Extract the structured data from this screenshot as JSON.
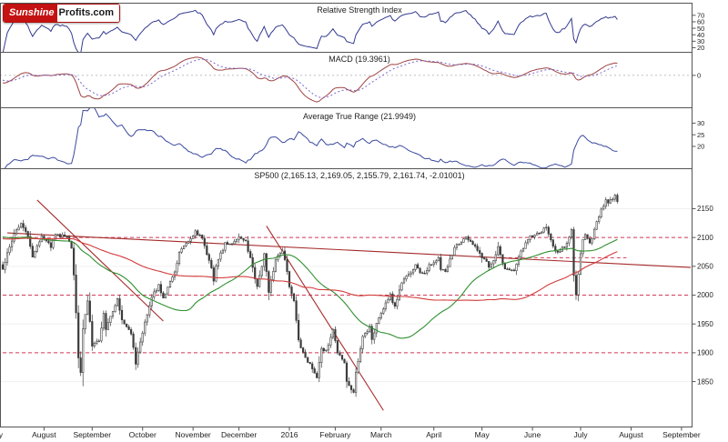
{
  "logo": {
    "brand_left": "Sunshine",
    "brand_right": "Profits.com"
  },
  "colors": {
    "rsi_line": "#333a8f",
    "macd_line": "#a04545",
    "macd_signal": "#7b68cc",
    "atr_line": "#3a4a9f",
    "candle": "#3c3c3c",
    "sma_fast": "#2f8f2f",
    "sma_slow": "#d23b3b",
    "trend": "#a52a2a",
    "level": "#d23b5a",
    "grid": "#f0f0f0",
    "axis": "#555555",
    "text": "#222222"
  },
  "chart_data": {
    "type": "candlestick_with_indicators",
    "seed": 7,
    "x_axis": {
      "months": [
        {
          "label": "July",
          "day": -3
        },
        {
          "label": "August",
          "day": 18
        },
        {
          "label": "September",
          "day": 39
        },
        {
          "label": "October",
          "day": 61
        },
        {
          "label": "November",
          "day": 83
        },
        {
          "label": "December",
          "day": 103
        },
        {
          "label": "2016",
          "day": 125
        },
        {
          "label": "February",
          "day": 145
        },
        {
          "label": "March",
          "day": 165
        },
        {
          "label": "April",
          "day": 188
        },
        {
          "label": "May",
          "day": 209
        },
        {
          "label": "June",
          "day": 231
        },
        {
          "label": "July",
          "day": 252
        },
        {
          "label": "August",
          "day": 274
        },
        {
          "label": "September",
          "day": 296
        }
      ]
    },
    "panels": {
      "rsi": {
        "type": "line",
        "title": "Relative Strength Index",
        "indicator": "RSI(14)",
        "ticks": [
          70,
          60,
          50,
          40,
          30,
          20
        ],
        "range": [
          15,
          88
        ]
      },
      "macd": {
        "type": "line",
        "title": "MACD (19.3961)",
        "indicator": "MACD(12,26,9)",
        "last_value": 19.3961,
        "ticks": [
          0
        ]
      },
      "atr": {
        "type": "line",
        "title": "Average True Range (21.9949)",
        "indicator": "ATR(14)",
        "last_value": 21.9949,
        "ticks": [
          30,
          25,
          20
        ],
        "range": [
          11,
          36
        ]
      },
      "price": {
        "type": "candlestick",
        "title": "SP500 (2,165.13, 2,169.05, 2,155.79, 2,161.74, -2.01001)",
        "symbol": "SP500",
        "last_quote": {
          "open": 2165.13,
          "high": 2169.05,
          "low": 2155.79,
          "close": 2161.74,
          "change": -2.01001
        },
        "ticks": [
          2150,
          2100,
          2050,
          2000,
          1950,
          1900,
          1850
        ],
        "range": [
          1772,
          2217
        ],
        "overlays": [
          {
            "name": "SMA50",
            "color_key": "sma_fast"
          },
          {
            "name": "SMA100",
            "color_key": "sma_slow"
          }
        ],
        "lead_in_keypoints": [
          [
            -210,
            1990
          ],
          [
            -180,
            2040
          ],
          [
            -150,
            2075
          ],
          [
            -120,
            2058
          ],
          [
            -90,
            2100
          ],
          [
            -60,
            2090
          ],
          [
            -30,
            2115
          ],
          [
            -12,
            2108
          ],
          [
            -5,
            2077
          ]
        ],
        "keypoints": [
          [
            0,
            2046
          ],
          [
            2,
            2072
          ],
          [
            5,
            2108
          ],
          [
            8,
            2124
          ],
          [
            11,
            2102
          ],
          [
            13,
            2067
          ],
          [
            17,
            2104
          ],
          [
            21,
            2084
          ],
          [
            23,
            2104
          ],
          [
            28,
            2102
          ],
          [
            30,
            2080
          ],
          [
            31,
            2036
          ],
          [
            32,
            1971
          ],
          [
            33,
            1893
          ],
          [
            34,
            1868
          ],
          [
            35,
            1941
          ],
          [
            37,
            1989
          ],
          [
            39,
            1914
          ],
          [
            42,
            1921
          ],
          [
            44,
            1969
          ],
          [
            45,
            1942
          ],
          [
            50,
            1995
          ],
          [
            52,
            1958
          ],
          [
            56,
            1932
          ],
          [
            58,
            1882
          ],
          [
            60,
            1920
          ],
          [
            62,
            1951
          ],
          [
            65,
            1996
          ],
          [
            68,
            2017
          ],
          [
            70,
            1994
          ],
          [
            76,
            2053
          ],
          [
            77,
            2075
          ],
          [
            80,
            2090
          ],
          [
            84,
            2110
          ],
          [
            87,
            2099
          ],
          [
            91,
            2046
          ],
          [
            92,
            2023
          ],
          [
            93,
            2053
          ],
          [
            97,
            2089
          ],
          [
            100,
            2089
          ],
          [
            103,
            2102
          ],
          [
            106,
            2092
          ],
          [
            108,
            2064
          ],
          [
            111,
            2012
          ],
          [
            114,
            2073
          ],
          [
            116,
            2005
          ],
          [
            119,
            2064
          ],
          [
            122,
            2078
          ],
          [
            124,
            2044
          ],
          [
            125,
            2012
          ],
          [
            127,
            1990
          ],
          [
            129,
            1922
          ],
          [
            132,
            1890
          ],
          [
            134,
            1880
          ],
          [
            137,
            1859
          ],
          [
            139,
            1907
          ],
          [
            141,
            1904
          ],
          [
            144,
            1940
          ],
          [
            146,
            1903
          ],
          [
            149,
            1880
          ],
          [
            150,
            1853
          ],
          [
            153,
            1829
          ],
          [
            154,
            1865
          ],
          [
            157,
            1927
          ],
          [
            160,
            1945
          ],
          [
            161,
            1921
          ],
          [
            163,
            1952
          ],
          [
            166,
            1978
          ],
          [
            169,
            2000
          ],
          [
            171,
            1979
          ],
          [
            174,
            2022
          ],
          [
            178,
            2040
          ],
          [
            180,
            2052
          ],
          [
            183,
            2036
          ],
          [
            187,
            2055
          ],
          [
            190,
            2066
          ],
          [
            191,
            2045
          ],
          [
            193,
            2042
          ],
          [
            197,
            2082
          ],
          [
            202,
            2102
          ],
          [
            204,
            2092
          ],
          [
            208,
            2075
          ],
          [
            209,
            2065
          ],
          [
            212,
            2051
          ],
          [
            214,
            2057
          ],
          [
            216,
            2084
          ],
          [
            219,
            2046
          ],
          [
            223,
            2040
          ],
          [
            226,
            2076
          ],
          [
            229,
            2099
          ],
          [
            233,
            2105
          ],
          [
            237,
            2119
          ],
          [
            239,
            2096
          ],
          [
            241,
            2075
          ],
          [
            243,
            2078
          ],
          [
            245,
            2083
          ],
          [
            248,
            2113
          ],
          [
            249,
            2037
          ],
          [
            250,
            2001
          ],
          [
            251,
            2036
          ],
          [
            252,
            2071
          ],
          [
            253,
            2099
          ],
          [
            254,
            2103
          ],
          [
            256,
            2089
          ],
          [
            257,
            2100
          ],
          [
            259,
            2130
          ],
          [
            260,
            2137
          ],
          [
            261,
            2152
          ],
          [
            262,
            2152
          ],
          [
            263,
            2164
          ],
          [
            264,
            2162
          ],
          [
            265,
            2167
          ],
          [
            266,
            2164
          ],
          [
            267,
            2173
          ],
          [
            268,
            2162
          ]
        ],
        "trendlines": [
          {
            "d1": 2,
            "v1": 2108,
            "d2": 300,
            "v2": 2048
          },
          {
            "d1": 15,
            "v1": 2165,
            "d2": 70,
            "v2": 1955
          },
          {
            "d1": 115,
            "v1": 2120,
            "d2": 166,
            "v2": 1800
          }
        ],
        "support_resistance_levels": [
          {
            "value": 2100,
            "d1": 0,
            "d2": 300
          },
          {
            "value": 2000,
            "d1": 0,
            "d2": 300
          },
          {
            "value": 1900,
            "d1": 0,
            "d2": 300
          },
          {
            "value": 2065,
            "d1": 215,
            "d2": 272
          }
        ]
      }
    }
  }
}
